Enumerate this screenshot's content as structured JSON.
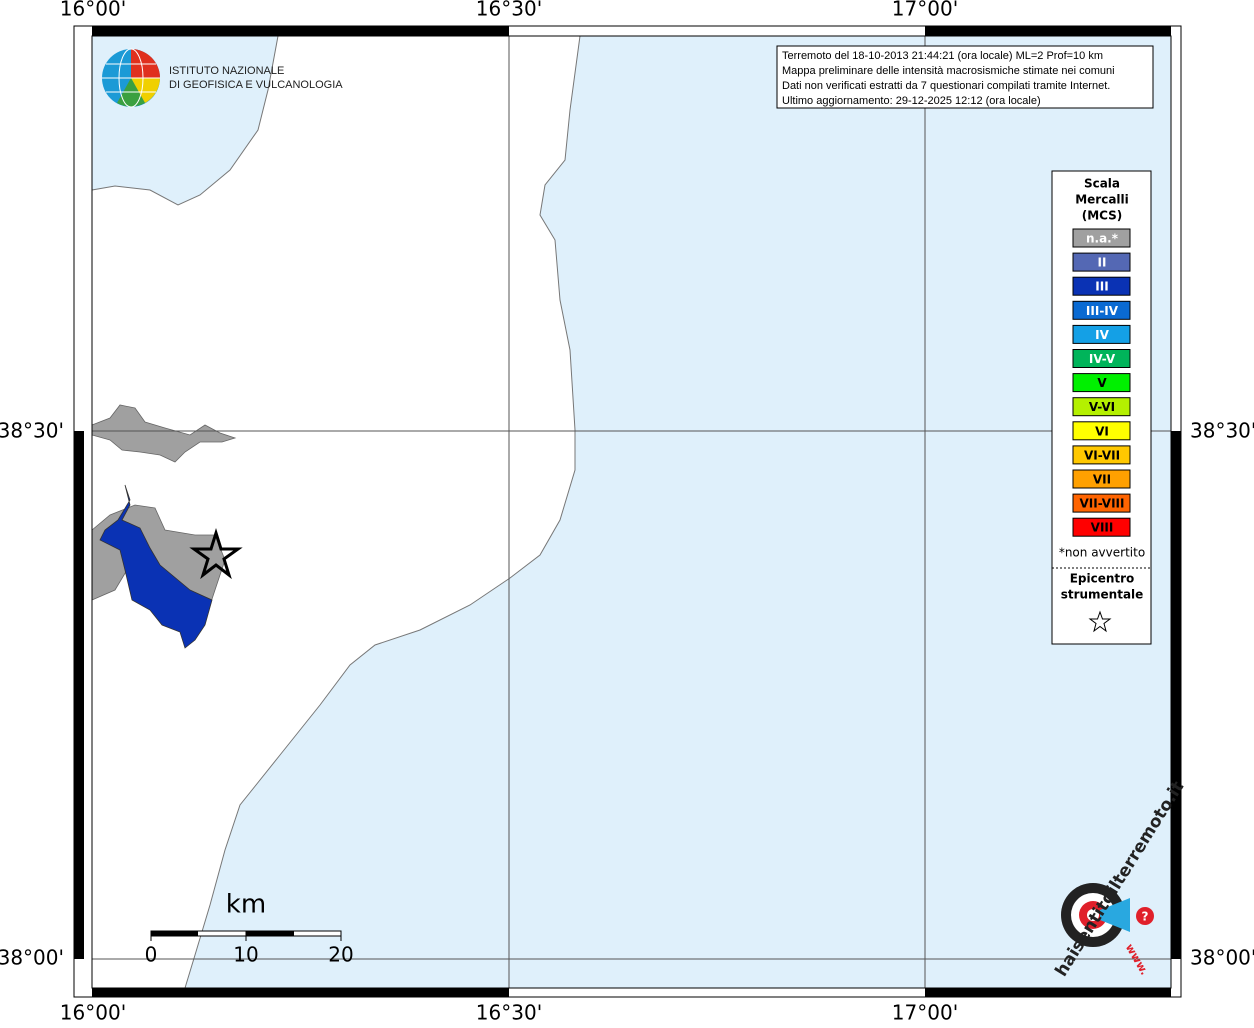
{
  "map": {
    "lon_labels": [
      "16°00'",
      "16°30'",
      "17°00'"
    ],
    "lat_labels": [
      "38°30'",
      "38°00'"
    ],
    "info": [
      "Terremoto del 18-10-2013 21:44:21 (ora locale) ML=2 Prof=10 km",
      "Mappa preliminare delle intensità macrosismiche stimate nei comuni",
      "Dati non verificati estratti da 7 questionari compilati tramite Internet.",
      "Ultimo aggiornamento: 29-12-2025 12:12 (ora locale)"
    ],
    "logo": [
      "ISTITUTO NAZIONALE",
      "DI GEOFISICA E VULCANOLOGIA"
    ],
    "legend": {
      "title": [
        "Scala",
        "Mercalli",
        "(MCS)"
      ],
      "items": [
        {
          "label": "n.a.*",
          "color": "#a0a0a0"
        },
        {
          "label": "II",
          "color": "#5468b4"
        },
        {
          "label": "III",
          "color": "#0a32b4"
        },
        {
          "label": "III-IV",
          "color": "#0a6ad2"
        },
        {
          "label": "IV",
          "color": "#14a0e6"
        },
        {
          "label": "IV-V",
          "color": "#00b45a"
        },
        {
          "label": "V",
          "color": "#00f000"
        },
        {
          "label": "V-VI",
          "color": "#b4f000"
        },
        {
          "label": "VI",
          "color": "#ffff00"
        },
        {
          "label": "VI-VII",
          "color": "#ffc800"
        },
        {
          "label": "VII",
          "color": "#ffa000"
        },
        {
          "label": "VII-VIII",
          "color": "#ff6400"
        },
        {
          "label": "VIII",
          "color": "#ff0000"
        }
      ],
      "note": "*non avvertito",
      "epicenter": [
        "Epicentro",
        "strumentale"
      ]
    },
    "scale": {
      "unit": "km",
      "labels": [
        "0",
        "10",
        "20"
      ]
    },
    "site": {
      "name": "haisentitoilterremoto.it",
      "prefix": "www.",
      "mark": "?"
    }
  }
}
